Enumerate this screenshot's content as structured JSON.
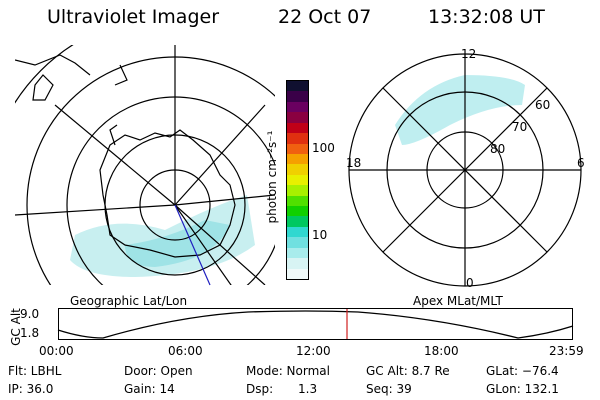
{
  "header": {
    "title": "Ultraviolet Imager",
    "date": "22 Oct 07",
    "time": "13:32:08 UT"
  },
  "colorbar": {
    "label": "photon cm⁻²s⁻¹",
    "ticks": [
      "100",
      "10"
    ],
    "colors": [
      "#101030",
      "#3a0048",
      "#6a0060",
      "#8a0040",
      "#c00018",
      "#e03010",
      "#f06010",
      "#f5a000",
      "#f0d000",
      "#e8f000",
      "#a8f000",
      "#50e000",
      "#10d000",
      "#00c860",
      "#30d8d0",
      "#70e0e0",
      "#a8ecec",
      "#d8f4f4",
      "#f0fafa"
    ]
  },
  "left_map": {
    "label": "Geographic Lat/Lon"
  },
  "right_map": {
    "label": "Apex MLat/MLT",
    "mlt_labels": [
      "12",
      "18",
      "6",
      "0"
    ],
    "lat_labels": [
      "60",
      "70",
      "80"
    ]
  },
  "altitude_plot": {
    "ylabel": "GC Alt",
    "yticks": [
      "9.0",
      "1.8"
    ],
    "xticks": [
      "00:00",
      "06:00",
      "12:00",
      "18:00",
      "23:59"
    ]
  },
  "info": {
    "row1": {
      "filter": "Flt: LBHL",
      "door": "Door: Open",
      "mode": "Mode: Normal",
      "gc_alt": "GC Alt: 8.7 Re",
      "glat": "GLat: −76.4"
    },
    "row2": {
      "ip": "IP: 36.0",
      "gain": "Gain: 14",
      "dsp_label": "Dsp:",
      "dsp_value": "1.3",
      "seq": "Seq: 39",
      "glon": "GLon: 132.1"
    }
  }
}
